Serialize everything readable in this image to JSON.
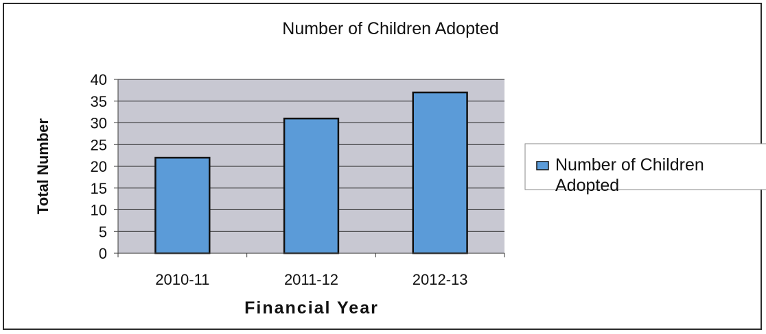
{
  "chart_data": {
    "type": "bar",
    "title": "Number of Children Adopted",
    "xlabel": "Financial Year",
    "ylabel": "Total Number",
    "categories": [
      "2010-11",
      "2011-12",
      "2012-13"
    ],
    "series": [
      {
        "name": "Number of Children Adopted",
        "values": [
          22,
          31,
          37
        ]
      }
    ],
    "ylim": [
      0,
      40
    ],
    "yticks": [
      "0",
      "5",
      "10",
      "15",
      "20",
      "25",
      "30",
      "35",
      "40"
    ],
    "grid": true,
    "legend": {
      "position": "right",
      "lines": [
        "Number of Children",
        "Adopted"
      ]
    },
    "colors": {
      "bar": "#5b9bd8",
      "bar_stroke": "#111111",
      "plot_bg": "#c8c8d2",
      "grid": "#222222"
    }
  }
}
